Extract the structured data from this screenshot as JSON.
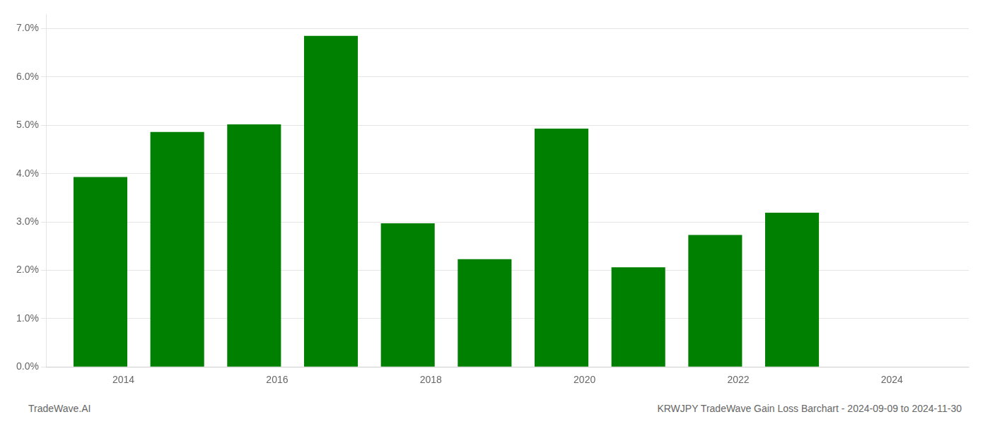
{
  "chart_data": {
    "type": "bar",
    "x": [
      2013.7,
      2014.7,
      2015.7,
      2016.7,
      2017.7,
      2018.7,
      2019.7,
      2020.7,
      2021.7,
      2022.7
    ],
    "values": [
      3.93,
      4.86,
      5.02,
      6.85,
      2.97,
      2.23,
      4.93,
      2.06,
      2.73,
      3.19
    ],
    "color": "#008000",
    "xlim": [
      2013.0,
      2025.0
    ],
    "xticks": [
      2014,
      2016,
      2018,
      2020,
      2022,
      2024
    ],
    "ylim": [
      0.0,
      7.3
    ],
    "yticks": [
      {
        "value": 0.0,
        "label": "0.0%"
      },
      {
        "value": 1.0,
        "label": "1.0%"
      },
      {
        "value": 2.0,
        "label": "2.0%"
      },
      {
        "value": 3.0,
        "label": "3.0%"
      },
      {
        "value": 4.0,
        "label": "4.0%"
      },
      {
        "value": 5.0,
        "label": "5.0%"
      },
      {
        "value": 6.0,
        "label": "6.0%"
      },
      {
        "value": 7.0,
        "label": "7.0%"
      }
    ],
    "grid": true,
    "annotations": [
      "TradeWave.AI",
      "KRWJPY TradeWave Gain Loss Barchart - 2024-09-09 to 2024-11-30"
    ]
  }
}
